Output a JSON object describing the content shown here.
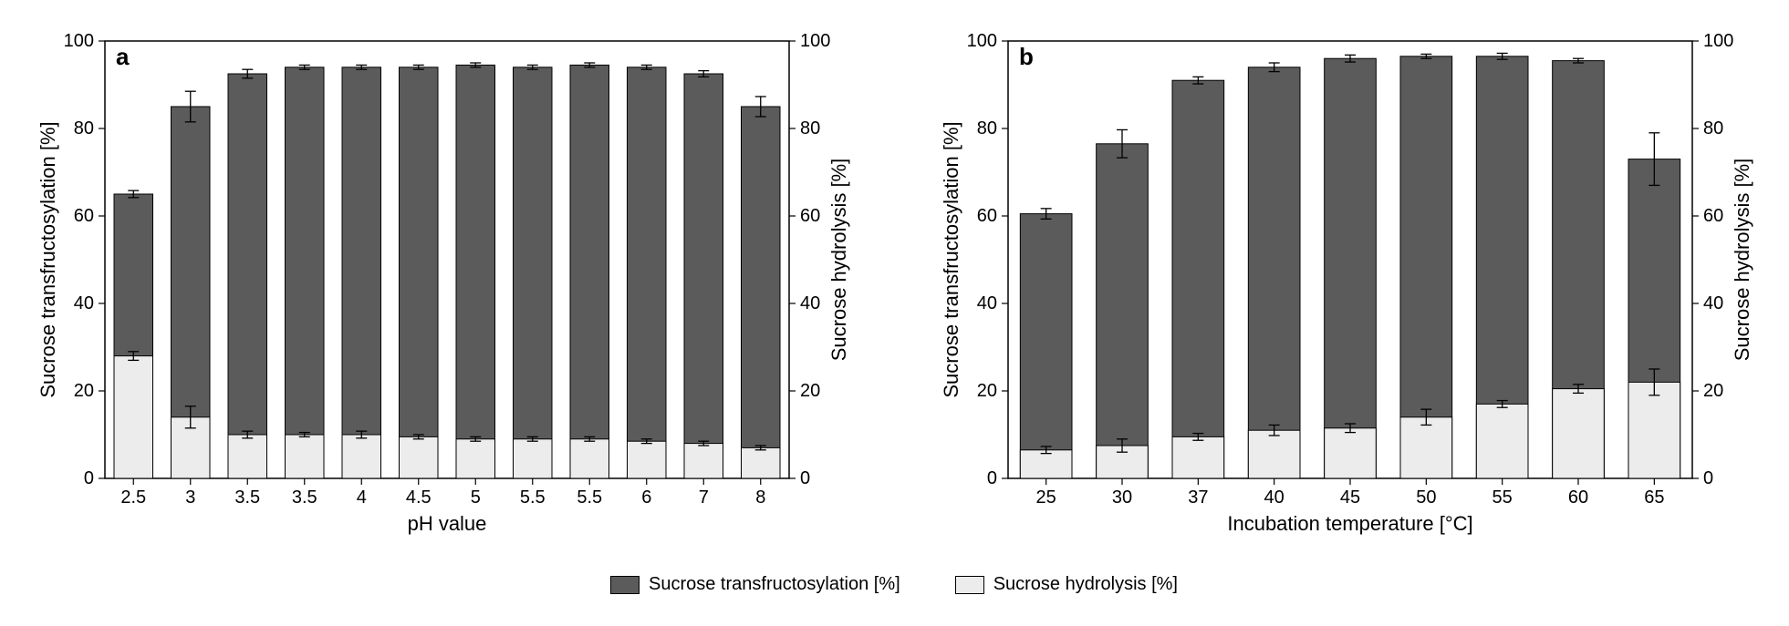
{
  "colors": {
    "dark_fill": "#5b5b5b",
    "light_fill": "#ececec",
    "stroke": "#000000",
    "background": "#ffffff"
  },
  "typography": {
    "axis_label_fontsize": 22,
    "tick_fontsize": 20,
    "panel_letter_fontsize": 26,
    "panel_letter_weight": "bold",
    "legend_fontsize": 20
  },
  "legend": {
    "items": [
      {
        "label": "Sucrose transfructosylation [%]",
        "fill": "#5b5b5b"
      },
      {
        "label": "Sucrose hydrolysis [%]",
        "fill": "#ececec"
      }
    ]
  },
  "chart_a": {
    "type": "bar",
    "panel_letter": "a",
    "xlabel": "pH value",
    "ylabel_left": "Sucrose transfructosylation [%]",
    "ylabel_right": "Sucrose hydrolysis [%]",
    "ylim": [
      0,
      100
    ],
    "ytick_step": 20,
    "bar_width": 0.68,
    "categories": [
      "2.5",
      "3",
      "3.5",
      "3.5",
      "4",
      "4.5",
      "5",
      "5.5",
      "5.5",
      "6",
      "7",
      "8"
    ],
    "transfructosylation": [
      65,
      85,
      92.5,
      94,
      94,
      94,
      94.5,
      94,
      94.5,
      94,
      92.5,
      85
    ],
    "trans_err": [
      0.8,
      3.5,
      1.0,
      0.5,
      0.5,
      0.5,
      0.5,
      0.5,
      0.5,
      0.5,
      0.7,
      2.3
    ],
    "hydrolysis": [
      28,
      14,
      10,
      10,
      10,
      9.5,
      9,
      9,
      9,
      8.5,
      8,
      7
    ],
    "hydro_err": [
      1.0,
      2.5,
      0.8,
      0.5,
      0.8,
      0.5,
      0.5,
      0.5,
      0.5,
      0.5,
      0.5,
      0.5
    ]
  },
  "chart_b": {
    "type": "bar",
    "panel_letter": "b",
    "xlabel": "Incubation temperature [°C]",
    "ylabel_left": "Sucrose transfructosylation [%]",
    "ylabel_right": "Sucrose hydrolysis [%]",
    "ylim": [
      0,
      100
    ],
    "ytick_step": 20,
    "bar_width": 0.68,
    "categories": [
      "25",
      "30",
      "37",
      "40",
      "45",
      "50",
      "55",
      "60",
      "65"
    ],
    "transfructosylation": [
      60.5,
      76.5,
      91,
      94,
      96,
      96.5,
      96.5,
      95.5,
      73
    ],
    "trans_err": [
      1.2,
      3.2,
      0.8,
      1.0,
      0.8,
      0.5,
      0.7,
      0.5,
      6.0
    ],
    "hydrolysis": [
      6.5,
      7.5,
      9.5,
      11,
      11.5,
      14,
      17,
      20.5,
      22
    ],
    "hydro_err": [
      0.8,
      1.5,
      0.8,
      1.2,
      1.0,
      1.8,
      0.8,
      1.0,
      3.0
    ]
  }
}
